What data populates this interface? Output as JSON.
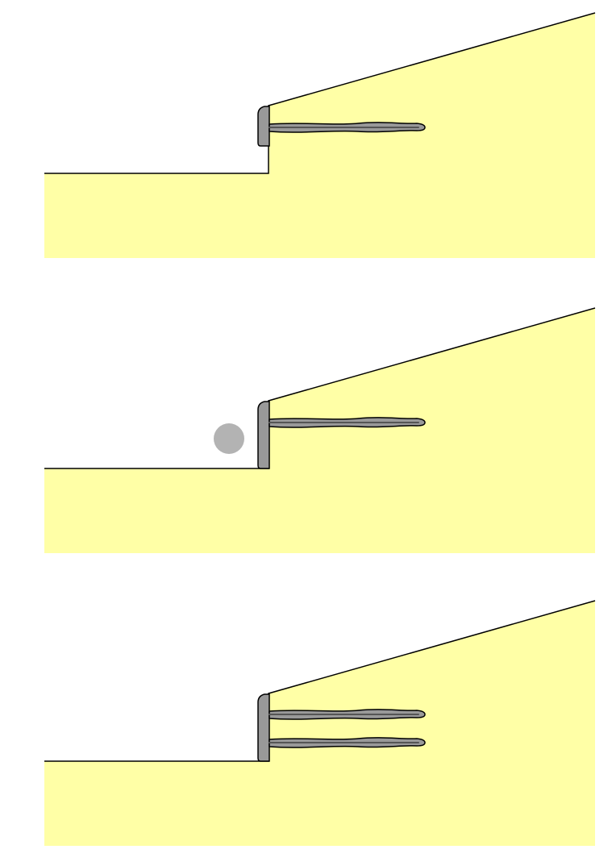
{
  "colors": {
    "soil": "#ffffa6",
    "outline": "#000000",
    "facing": "#999999",
    "grout": "#999999",
    "nail_bar": "#555555",
    "marker": "#b3b3b3",
    "background": "#ffffff"
  },
  "panels": [
    {
      "id": "stage-1",
      "nail_rows": 1,
      "facing_full_height": false,
      "marker": false
    },
    {
      "id": "stage-2",
      "nail_rows": 1,
      "facing_full_height": true,
      "marker": true
    },
    {
      "id": "stage-3",
      "nail_rows": 2,
      "facing_full_height": true,
      "marker": false
    }
  ]
}
